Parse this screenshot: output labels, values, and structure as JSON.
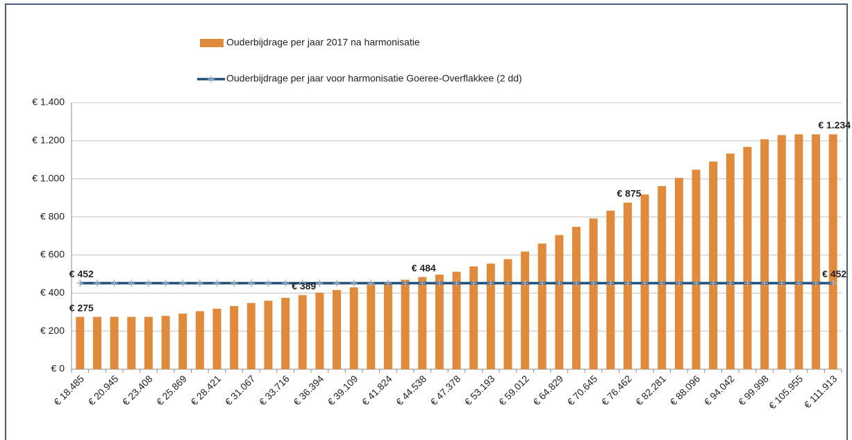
{
  "chart_data": {
    "type": "bar",
    "categories": [
      "€ 18.485",
      null,
      "€ 20.945",
      null,
      "€ 23.408",
      null,
      "€ 25.869",
      null,
      "€ 28.421",
      null,
      "€ 31.067",
      null,
      "€ 33.716",
      null,
      "€ 36.394",
      null,
      "€ 39.109",
      null,
      "€ 41.824",
      null,
      "€ 44.538",
      null,
      "€ 47.378",
      null,
      "€ 53.193",
      null,
      "€ 59.012",
      null,
      "€ 64.829",
      null,
      "€ 70.645",
      null,
      "€ 76.462",
      null,
      "€ 82.281",
      null,
      "€ 88.096",
      null,
      "€ 94.042",
      null,
      "€ 99.998",
      null,
      "€ 105.955",
      null,
      "€ 111.913"
    ],
    "series": [
      {
        "name": "Ouderbijdrage per jaar 2017 na harmonisatie",
        "type": "bar",
        "color": "#e08a3c",
        "values": [
          275,
          275,
          275,
          275,
          275,
          280,
          292,
          305,
          318,
          332,
          348,
          360,
          375,
          389,
          402,
          416,
          430,
          444,
          458,
          470,
          484,
          497,
          512,
          540,
          555,
          578,
          618,
          660,
          705,
          748,
          792,
          833,
          875,
          918,
          962,
          1005,
          1048,
          1091,
          1133,
          1168,
          1208,
          1230,
          1234,
          1234,
          1234
        ],
        "value_labels": [
          "€ 275",
          null,
          null,
          null,
          null,
          null,
          null,
          null,
          null,
          null,
          null,
          null,
          null,
          "€ 389",
          null,
          null,
          null,
          null,
          null,
          null,
          "€ 484",
          null,
          null,
          null,
          null,
          null,
          null,
          null,
          null,
          null,
          null,
          null,
          "€ 875",
          null,
          null,
          null,
          null,
          null,
          null,
          null,
          null,
          null,
          null,
          null,
          "€ 1.234"
        ]
      },
      {
        "name": "Ouderbijdrage per jaar voor harmonisatie Goeree-Overflakkee (2 dd)",
        "type": "line",
        "color": "#1f4e79",
        "values": [
          452,
          452,
          452,
          452,
          452,
          452,
          452,
          452,
          452,
          452,
          452,
          452,
          452,
          452,
          452,
          452,
          452,
          452,
          452,
          452,
          452,
          452,
          452,
          452,
          452,
          452,
          452,
          452,
          452,
          452,
          452,
          452,
          452,
          452,
          452,
          452,
          452,
          452,
          452,
          452,
          452,
          452,
          452,
          452,
          452
        ],
        "value_labels": [
          "€ 452",
          null,
          null,
          null,
          null,
          null,
          null,
          null,
          null,
          null,
          null,
          null,
          null,
          null,
          null,
          null,
          null,
          null,
          null,
          null,
          null,
          null,
          null,
          null,
          null,
          null,
          null,
          null,
          null,
          null,
          null,
          null,
          null,
          null,
          null,
          null,
          null,
          null,
          null,
          null,
          null,
          null,
          null,
          null,
          "€ 452"
        ]
      }
    ],
    "ylim": [
      0,
      1400
    ],
    "yticks": [
      {
        "value": 0,
        "label": "€ 0"
      },
      {
        "value": 200,
        "label": "€ 200"
      },
      {
        "value": 400,
        "label": "€ 400"
      },
      {
        "value": 600,
        "label": "€ 600"
      },
      {
        "value": 800,
        "label": "€ 800"
      },
      {
        "value": 1000,
        "label": "€ 1.000"
      },
      {
        "value": 1200,
        "label": "€ 1.200"
      },
      {
        "value": 1400,
        "label": "€ 1.400"
      }
    ],
    "grid": true,
    "legend": "top"
  }
}
